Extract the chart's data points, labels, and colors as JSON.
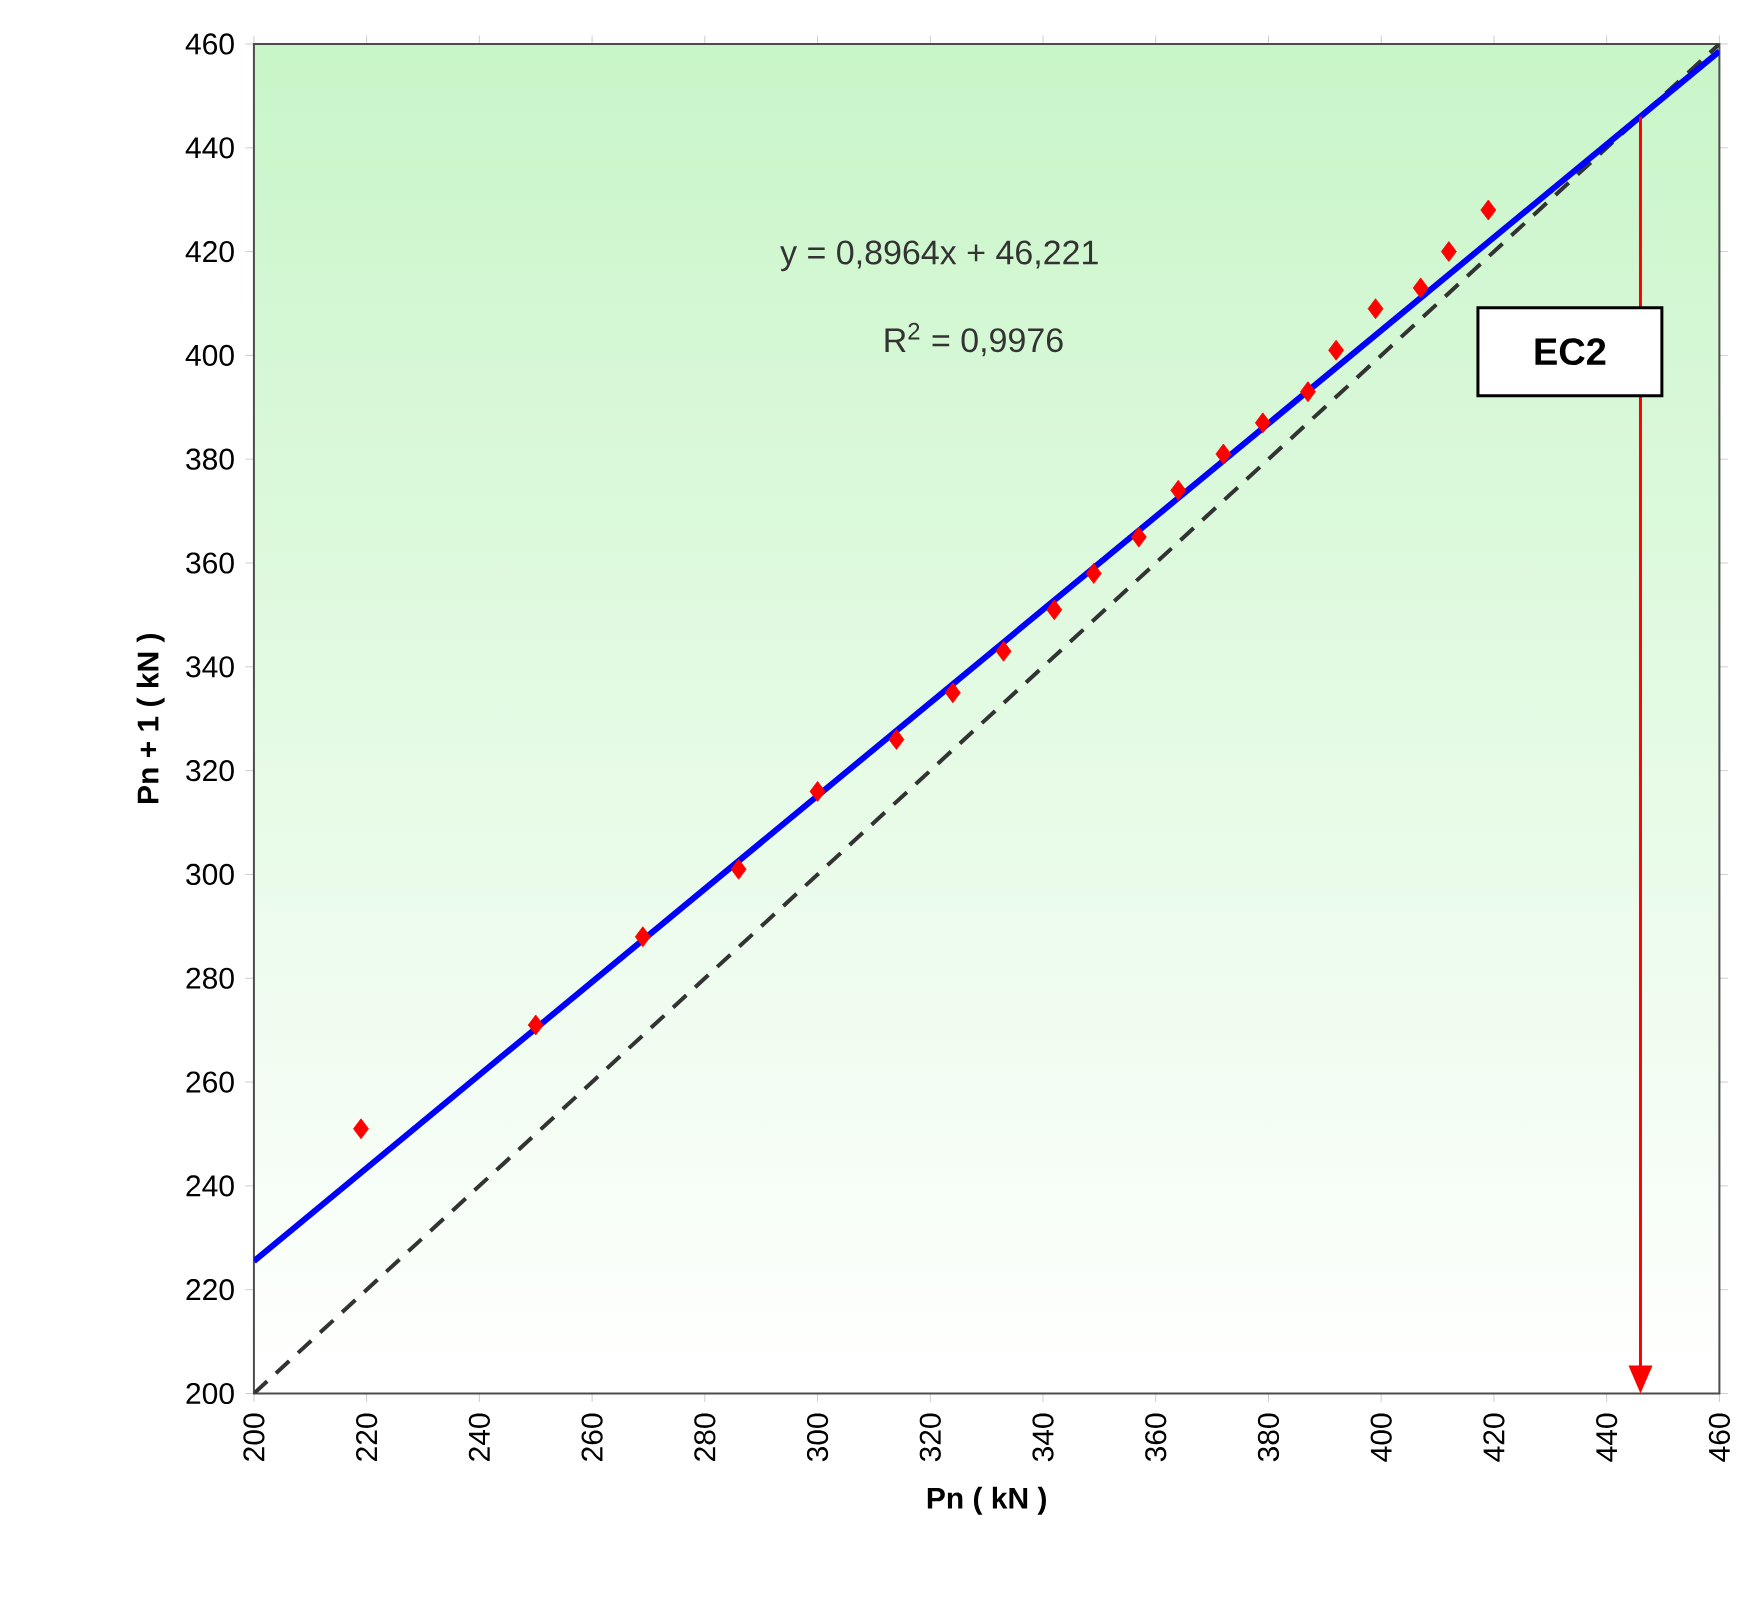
{
  "chart_data": {
    "type": "scatter",
    "xlabel": "Pn ( kN )",
    "ylabel": "Pn + 1 ( kN )",
    "xlim": [
      200,
      460
    ],
    "ylim": [
      200,
      460
    ],
    "xticks": [
      200,
      220,
      240,
      260,
      280,
      300,
      320,
      340,
      360,
      380,
      400,
      420,
      440,
      460
    ],
    "yticks": [
      200,
      220,
      240,
      260,
      280,
      300,
      320,
      340,
      360,
      380,
      400,
      420,
      440,
      460
    ],
    "series": [
      {
        "type": "line",
        "color": "#333333",
        "line_style": "dashed",
        "marker": "none",
        "x": [
          200,
          460
        ],
        "values": [
          200,
          460
        ]
      },
      {
        "type": "line",
        "color": "#0000ff",
        "line_style": "solid",
        "marker": "none",
        "x": [
          200,
          460
        ],
        "values": [
          225.5,
          458.6
        ]
      },
      {
        "color": "#ff0000",
        "marker": "diamond",
        "x": [
          219,
          250,
          269,
          286,
          300,
          314,
          324,
          333,
          342,
          349,
          357,
          364,
          372,
          379,
          387,
          392,
          399,
          407,
          412,
          419
        ],
        "values": [
          251,
          271,
          288,
          301,
          316,
          326,
          335,
          343,
          351,
          358,
          365,
          374,
          381,
          387,
          393,
          401,
          409,
          413,
          420,
          428
        ]
      }
    ],
    "annotations": [
      "y = 0,8964x + 46,221",
      "R$^{2}$ = 0,9976"
    ],
    "ref_lines": [
      {
        "axis": "x",
        "value": 446,
        "label": "EC2",
        "color": "#ff0000"
      }
    ]
  }
}
